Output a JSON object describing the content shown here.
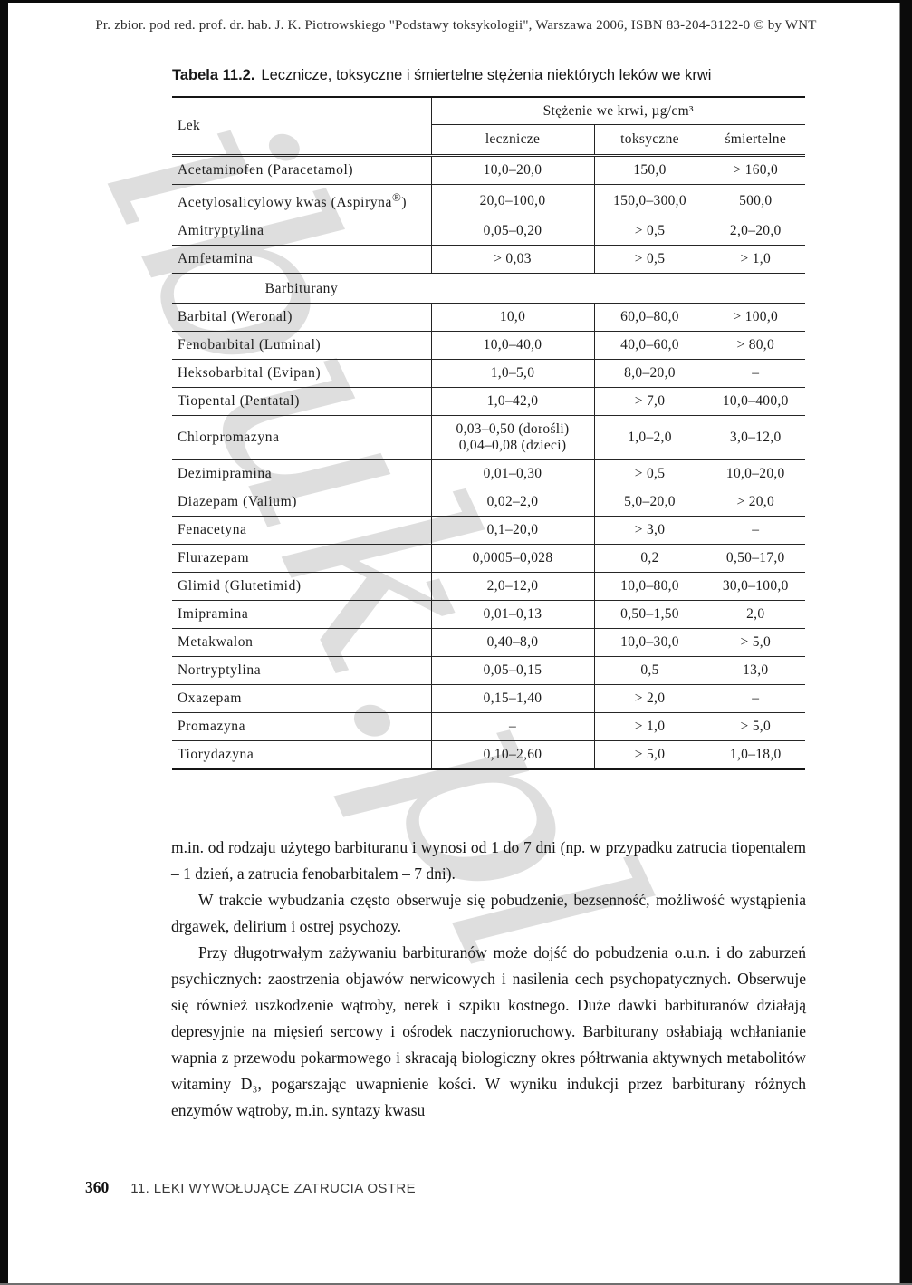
{
  "page": {
    "header_credit": "Pr. zbior. pod red. prof. dr. hab. J. K. Piotrowskiego \"Podstawy toksykologii\", Warszawa 2006, ISBN 83-204-3122-0 © by WNT",
    "watermark": "ibuk.pl",
    "footer": {
      "page_number": "360",
      "chapter": "11. LEKI WYWOŁUJĄCE ZATRUCIA OSTRE"
    }
  },
  "colors": {
    "page_background": "#ffffff",
    "scan_border": "#0b0b0b",
    "watermark_gray": "#d9d9d9",
    "rule_black": "#232323"
  },
  "table": {
    "caption_label": "Tabela 11.2.",
    "caption_text": "Lecznicze, toksyczne i śmiertelne stężenia niektórych leków we krwi",
    "col_drug": "Lek",
    "col_group": "Stężenie we krwi, µg/cm³",
    "subcols": [
      "lecznicze",
      "toksyczne",
      "śmiertelne"
    ],
    "rows": [
      {
        "name": "Acetaminofen (Paracetamol)",
        "lecznicze": "10,0–20,0",
        "toksyczne": "150,0",
        "smiertelne": "> 160,0"
      },
      {
        "name": "Acetylosalicylowy kwas (Aspiryna",
        "name_sup": "®",
        "name_tail": ")",
        "lecznicze": "20,0–100,0",
        "toksyczne": "150,0–300,0",
        "smiertelne": "500,0"
      },
      {
        "name": "Amitryptylina",
        "lecznicze": "0,05–0,20",
        "toksyczne": "> 0,5",
        "smiertelne": "2,0–20,0"
      },
      {
        "name": "Amfetamina",
        "lecznicze": "> 0,03",
        "toksyczne": "> 0,5",
        "smiertelne": "> 1,0"
      },
      {
        "section": "Barbiturany"
      },
      {
        "name": "Barbital (Weronal)",
        "lecznicze": "10,0",
        "toksyczne": "60,0–80,0",
        "smiertelne": "> 100,0"
      },
      {
        "name": "Fenobarbital (Luminal)",
        "lecznicze": "10,0–40,0",
        "toksyczne": "40,0–60,0",
        "smiertelne": "> 80,0"
      },
      {
        "name": "Heksobarbital (Evipan)",
        "lecznicze": "1,0–5,0",
        "toksyczne": "8,0–20,0",
        "smiertelne": "–"
      },
      {
        "name": "Tiopental (Pentatal)",
        "lecznicze": "1,0–42,0",
        "toksyczne": "> 7,0",
        "smiertelne": "10,0–400,0"
      },
      {
        "name": "Chlorpromazyna",
        "lecznicze": "0,03–0,50 (dorośli)\n0,04–0,08 (dzieci)",
        "toksyczne": "1,0–2,0",
        "smiertelne": "3,0–12,0"
      },
      {
        "name": "Dezimipramina",
        "lecznicze": "0,01–0,30",
        "toksyczne": "> 0,5",
        "smiertelne": "10,0–20,0"
      },
      {
        "name": "Diazepam (Valium)",
        "lecznicze": "0,02–2,0",
        "toksyczne": "5,0–20,0",
        "smiertelne": "> 20,0"
      },
      {
        "name": "Fenacetyna",
        "lecznicze": "0,1–20,0",
        "toksyczne": "> 3,0",
        "smiertelne": "–"
      },
      {
        "name": "Flurazepam",
        "lecznicze": "0,0005–0,028",
        "toksyczne": "0,2",
        "smiertelne": "0,50–17,0"
      },
      {
        "name": "Glimid (Glutetimid)",
        "lecznicze": "2,0–12,0",
        "toksyczne": "10,0–80,0",
        "smiertelne": "30,0–100,0"
      },
      {
        "name": "Imipramina",
        "lecznicze": "0,01–0,13",
        "toksyczne": "0,50–1,50",
        "smiertelne": "2,0"
      },
      {
        "name": "Metakwalon",
        "lecznicze": "0,40–8,0",
        "toksyczne": "10,0–30,0",
        "smiertelne": "> 5,0"
      },
      {
        "name": "Nortryptylina",
        "lecznicze": "0,05–0,15",
        "toksyczne": "0,5",
        "smiertelne": "13,0"
      },
      {
        "name": "Oxazepam",
        "lecznicze": "0,15–1,40",
        "toksyczne": "> 2,0",
        "smiertelne": "–"
      },
      {
        "name": "Promazyna",
        "lecznicze": "–",
        "toksyczne": "> 1,0",
        "smiertelne": "> 5,0"
      },
      {
        "name": "Tiorydazyna",
        "lecznicze": "0,10–2,60",
        "toksyczne": "> 5,0",
        "smiertelne": "1,0–18,0"
      }
    ]
  },
  "body": {
    "paragraphs": [
      "m.in. od rodzaju użytego barbituranu i wynosi od 1 do 7 dni (np. w przypadku zatrucia tiopentalem – 1 dzień, a zatrucia fenobarbitalem – 7 dni).",
      "W trakcie wybudzania często obserwuje się pobudzenie, bezsenność, możliwość wystąpienia drgawek, delirium i ostrej psychozy.",
      "Przy długotrwałym zażywaniu barbituranów może dojść do pobudzenia o.u.n. i do zaburzeń psychicznych: zaostrzenia objawów nerwicowych i nasilenia cech psychopatycznych. Obserwuje się również uszkodzenie wątroby, nerek i szpiku kostnego. Duże dawki barbituranów działają depresyjnie na mięsień sercowy i ośrodek naczynioruchowy. Barbiturany osłabiają wchłanianie wapnia z przewodu pokarmowego i skracają biologiczny okres półtrwania aktywnych metabolitów witaminy D₃, pogarszając uwapnienie kości. W wyniku indukcji przez barbiturany różnych enzymów wątroby, m.in. syntazy kwasu"
    ]
  }
}
